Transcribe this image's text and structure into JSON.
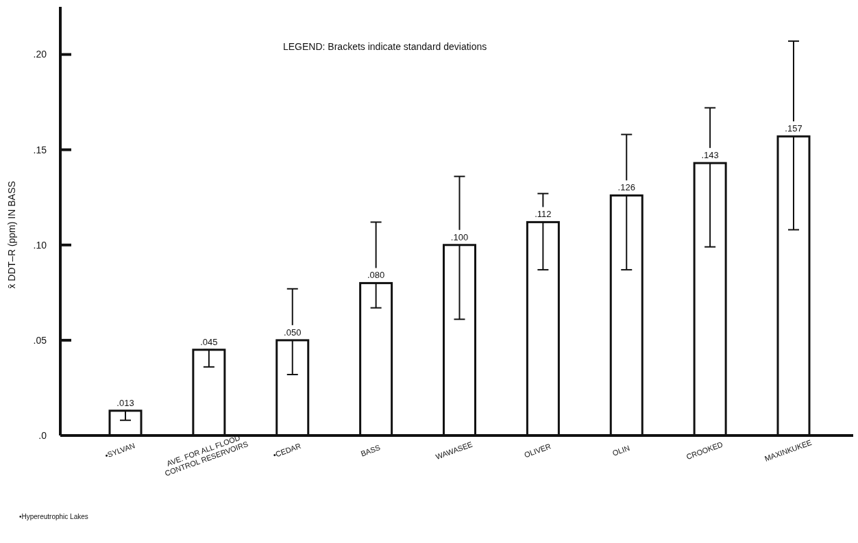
{
  "chart_data": {
    "type": "bar",
    "ylabel": "x̄ DDT–R (ppm) IN BASS",
    "categories": [
      "•SYLVAN",
      "AVE. FOR ALL FLOOD\nCONTROL RESERVOIRS",
      "•CEDAR",
      "BASS",
      "WAWASEE",
      "OLIVER",
      "OLIN",
      "CROOKED",
      "MAXINKUKEE"
    ],
    "values": [
      0.013,
      0.045,
      0.05,
      0.08,
      0.1,
      0.112,
      0.126,
      0.143,
      0.157
    ],
    "errors": [
      [
        0.008,
        0.013
      ],
      [
        0.036,
        0.045
      ],
      [
        0.032,
        0.077
      ],
      [
        0.067,
        0.112
      ],
      [
        0.061,
        0.136
      ],
      [
        0.087,
        0.127
      ],
      [
        0.087,
        0.158
      ],
      [
        0.099,
        0.172
      ],
      [
        0.108,
        0.207
      ]
    ],
    "color": "#ffffff",
    "value_labels": [
      ".013",
      ".045",
      ".050",
      ".080",
      ".100",
      ".112",
      ".126",
      ".143",
      ".157"
    ],
    "ylim": [
      0,
      0.225
    ],
    "yticks": [
      {
        "value": 0,
        "label": ".0"
      },
      {
        "value": 0.05,
        "label": ".05"
      },
      {
        "value": 0.1,
        "label": ".10"
      },
      {
        "value": 0.15,
        "label": ".15"
      },
      {
        "value": 0.2,
        "label": ".20"
      }
    ],
    "grid": false,
    "annotations": [
      "LEGEND: Brackets indicate standard deviations",
      "•Hypereutrophic Lakes"
    ]
  }
}
